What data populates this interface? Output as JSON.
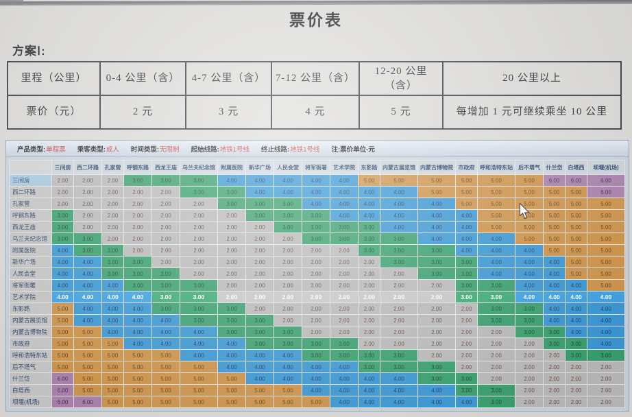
{
  "title": "票价表",
  "plan_label": "方案Ⅰ:",
  "fare_table": {
    "header": [
      "里程（公里）",
      "0-4 公里（含）",
      "4-7 公里（含）",
      "7-12 公里（含）",
      "12-20 公里（含）",
      "20 公里以上"
    ],
    "row": [
      "票价（元）",
      "2 元",
      "3 元",
      "4 元",
      "5 元",
      "每增加 1 元可继续乘坐 10 公里"
    ]
  },
  "info_bar": {
    "items": [
      {
        "label": "产品类型:",
        "value": "单程票"
      },
      {
        "label": "乘客类型:",
        "value": "成人"
      },
      {
        "label": "时间类型:",
        "value": "无限制"
      },
      {
        "label": "起始线路:",
        "value": "地铁1号线"
      },
      {
        "label": "终止线路:",
        "value": "地铁1号线"
      }
    ],
    "note": "注:票价单位-元"
  },
  "matrix": {
    "unit": "元",
    "stations": [
      "三间房",
      "西二环路",
      "孔家营",
      "呼钢东路",
      "西龙王庙",
      "乌兰夫纪念馆",
      "附属医院",
      "新华广场",
      "人民会堂",
      "将军衙署",
      "艺术学院",
      "东影路",
      "内蒙古展览馆",
      "内蒙古博物院",
      "市政府",
      "呼和浩特东站",
      "后不塔气",
      "什兰岱",
      "白塔西",
      "坝堰(机场)"
    ],
    "selected_row_label_index": 0,
    "highlight_row_index": 10,
    "fares": [
      [
        2,
        2,
        2,
        3,
        3,
        3,
        4,
        4,
        4,
        4,
        4,
        5,
        5,
        5,
        5,
        5,
        5,
        6,
        6,
        6
      ],
      [
        2,
        2,
        2,
        2,
        2,
        3,
        3,
        4,
        4,
        4,
        4,
        4,
        4,
        5,
        5,
        5,
        5,
        5,
        5,
        6
      ],
      [
        2,
        2,
        2,
        2,
        2,
        2,
        3,
        3,
        3,
        4,
        4,
        4,
        4,
        4,
        5,
        5,
        5,
        5,
        5,
        5
      ],
      [
        3,
        2,
        2,
        2,
        2,
        2,
        2,
        3,
        3,
        3,
        4,
        4,
        4,
        4,
        4,
        5,
        5,
        5,
        5,
        5
      ],
      [
        3,
        2,
        2,
        2,
        2,
        2,
        2,
        2,
        3,
        3,
        3,
        3,
        4,
        4,
        4,
        5,
        5,
        5,
        5,
        5
      ],
      [
        3,
        3,
        2,
        2,
        2,
        2,
        2,
        2,
        2,
        3,
        3,
        3,
        3,
        4,
        4,
        4,
        5,
        5,
        5,
        5
      ],
      [
        4,
        3,
        3,
        2,
        2,
        2,
        2,
        2,
        2,
        2,
        2,
        3,
        3,
        3,
        4,
        4,
        4,
        5,
        5,
        5
      ],
      [
        4,
        4,
        3,
        3,
        2,
        2,
        2,
        2,
        2,
        2,
        2,
        2,
        3,
        3,
        3,
        4,
        4,
        4,
        5,
        5
      ],
      [
        4,
        4,
        3,
        3,
        3,
        2,
        2,
        2,
        2,
        2,
        2,
        2,
        2,
        3,
        3,
        4,
        4,
        4,
        5,
        5
      ],
      [
        4,
        4,
        4,
        3,
        3,
        3,
        2,
        2,
        2,
        2,
        2,
        2,
        2,
        2,
        3,
        3,
        4,
        4,
        4,
        5
      ],
      [
        4,
        4,
        4,
        4,
        3,
        3,
        2,
        2,
        2,
        2,
        2,
        2,
        2,
        2,
        3,
        3,
        4,
        4,
        4,
        4
      ],
      [
        5,
        4,
        4,
        4,
        3,
        3,
        3,
        2,
        2,
        2,
        2,
        2,
        2,
        2,
        2,
        3,
        3,
        4,
        4,
        4
      ],
      [
        5,
        4,
        4,
        4,
        4,
        3,
        3,
        3,
        2,
        2,
        2,
        2,
        2,
        2,
        2,
        3,
        3,
        4,
        4,
        4
      ],
      [
        5,
        5,
        4,
        4,
        4,
        4,
        3,
        3,
        3,
        2,
        2,
        2,
        2,
        2,
        2,
        2,
        3,
        3,
        4,
        4
      ],
      [
        5,
        5,
        5,
        4,
        4,
        4,
        4,
        3,
        3,
        3,
        3,
        2,
        2,
        2,
        2,
        2,
        2,
        3,
        3,
        4
      ],
      [
        5,
        5,
        5,
        5,
        5,
        4,
        4,
        4,
        4,
        3,
        3,
        3,
        3,
        2,
        2,
        2,
        2,
        2,
        3,
        3
      ],
      [
        5,
        5,
        5,
        5,
        5,
        5,
        4,
        4,
        4,
        4,
        4,
        3,
        3,
        3,
        2,
        2,
        2,
        2,
        2,
        2
      ],
      [
        6,
        5,
        5,
        5,
        5,
        5,
        5,
        4,
        4,
        4,
        4,
        4,
        4,
        3,
        3,
        2,
        2,
        2,
        2,
        2
      ],
      [
        6,
        5,
        5,
        5,
        5,
        5,
        5,
        5,
        5,
        4,
        4,
        4,
        4,
        4,
        3,
        3,
        2,
        2,
        2,
        2
      ],
      [
        6,
        6,
        5,
        5,
        5,
        5,
        5,
        5,
        5,
        5,
        4,
        4,
        4,
        4,
        4,
        3,
        2,
        2,
        2,
        2
      ]
    ]
  },
  "colors": {
    "fare_2": "#bababa",
    "fare_3": "#2f9e68",
    "fare_4": "#3095d6",
    "fare_5": "#d0903f",
    "fare_6": "#a97cab",
    "selected_label": "#a9cbe3",
    "info_value_red": "#cc3b2f"
  }
}
